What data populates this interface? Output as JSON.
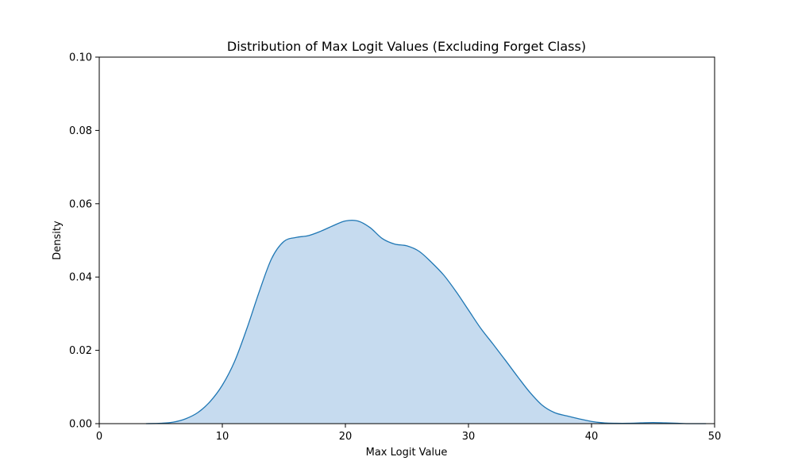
{
  "chart_data": {
    "type": "area",
    "title": "Distribution of Max Logit Values (Excluding Forget Class)",
    "xlabel": "Max Logit Value",
    "ylabel": "Density",
    "xlim": [
      0,
      50
    ],
    "ylim": [
      0,
      0.1
    ],
    "x_ticks": [
      0,
      10,
      20,
      30,
      40,
      50
    ],
    "x_tick_labels": [
      "0",
      "10",
      "20",
      "30",
      "40",
      "50"
    ],
    "y_ticks": [
      0,
      0.02,
      0.04,
      0.06,
      0.08,
      0.1
    ],
    "y_tick_labels": [
      "0.00",
      "0.02",
      "0.04",
      "0.06",
      "0.08",
      "0.10"
    ],
    "grid": false,
    "series": [
      {
        "line_color": "#1f77b4",
        "fill_color": "#c6dbef",
        "x": [
          3.8,
          5,
          6,
          7,
          8,
          9,
          10,
          11,
          12,
          13,
          14,
          15,
          16,
          17,
          18,
          19,
          20,
          21,
          22,
          23,
          24,
          25,
          26,
          27,
          28,
          29,
          30,
          31,
          32,
          33,
          34,
          35,
          36,
          37,
          38,
          39,
          40,
          41,
          42,
          43,
          44,
          45,
          46,
          47,
          48,
          49.3
        ],
        "y": [
          0.0,
          0.0001,
          0.0004,
          0.0013,
          0.003,
          0.006,
          0.0105,
          0.017,
          0.026,
          0.036,
          0.045,
          0.0497,
          0.0508,
          0.0513,
          0.0525,
          0.054,
          0.0553,
          0.0553,
          0.0535,
          0.0505,
          0.049,
          0.0485,
          0.047,
          0.044,
          0.0405,
          0.036,
          0.031,
          0.026,
          0.0217,
          0.0173,
          0.0128,
          0.0085,
          0.005,
          0.003,
          0.0021,
          0.0013,
          0.0006,
          0.0002,
          0.0001,
          0.0001,
          0.0002,
          0.0003,
          0.0002,
          0.0001,
          0.0,
          0.0
        ]
      }
    ]
  }
}
